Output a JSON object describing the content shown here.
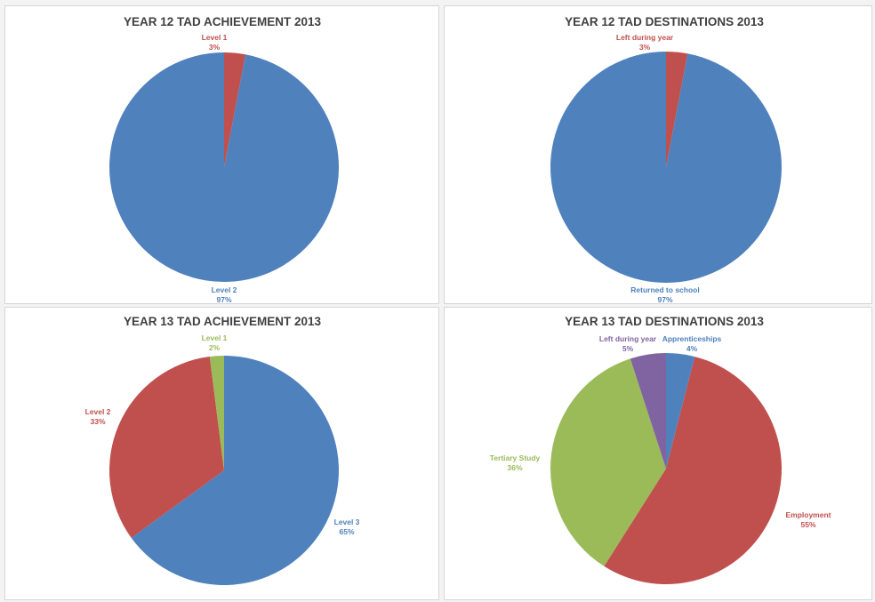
{
  "chart_data": [
    {
      "type": "pie",
      "title": "YEAR 12 TAD ACHIEVEMENT 2013",
      "slices": [
        {
          "label": "Level 1",
          "value_label": "3%",
          "value": 3,
          "color": "#c0504d"
        },
        {
          "label": "Level 2",
          "value_label": "97%",
          "value": 97,
          "color": "#4f81bd"
        }
      ]
    },
    {
      "type": "pie",
      "title": "YEAR 12 TAD DESTINATIONS 2013",
      "slices": [
        {
          "label": "Left during year",
          "value_label": "3%",
          "value": 3,
          "color": "#c0504d"
        },
        {
          "label": "Returned to school",
          "value_label": "97%",
          "value": 97,
          "color": "#4f81bd"
        }
      ]
    },
    {
      "type": "pie",
      "title": "YEAR 13 TAD ACHIEVEMENT 2013",
      "slices": [
        {
          "label": "Level 3",
          "value_label": "65%",
          "value": 65,
          "color": "#4f81bd"
        },
        {
          "label": "Level 2",
          "value_label": "33%",
          "value": 33,
          "color": "#c0504d"
        },
        {
          "label": "Level 1",
          "value_label": "2%",
          "value": 2,
          "color": "#9bbb59"
        }
      ]
    },
    {
      "type": "pie",
      "title": "YEAR 13 TAD DESTINATIONS 2013",
      "slices": [
        {
          "label": "Apprenticeships",
          "value_label": "4%",
          "value": 4,
          "color": "#4f81bd"
        },
        {
          "label": "Employment",
          "value_label": "55%",
          "value": 55,
          "color": "#c0504d"
        },
        {
          "label": "Tertiary Study",
          "value_label": "36%",
          "value": 36,
          "color": "#9bbb59"
        },
        {
          "label": "Left during year",
          "value_label": "5%",
          "value": 5,
          "color": "#8064a2"
        }
      ]
    }
  ]
}
